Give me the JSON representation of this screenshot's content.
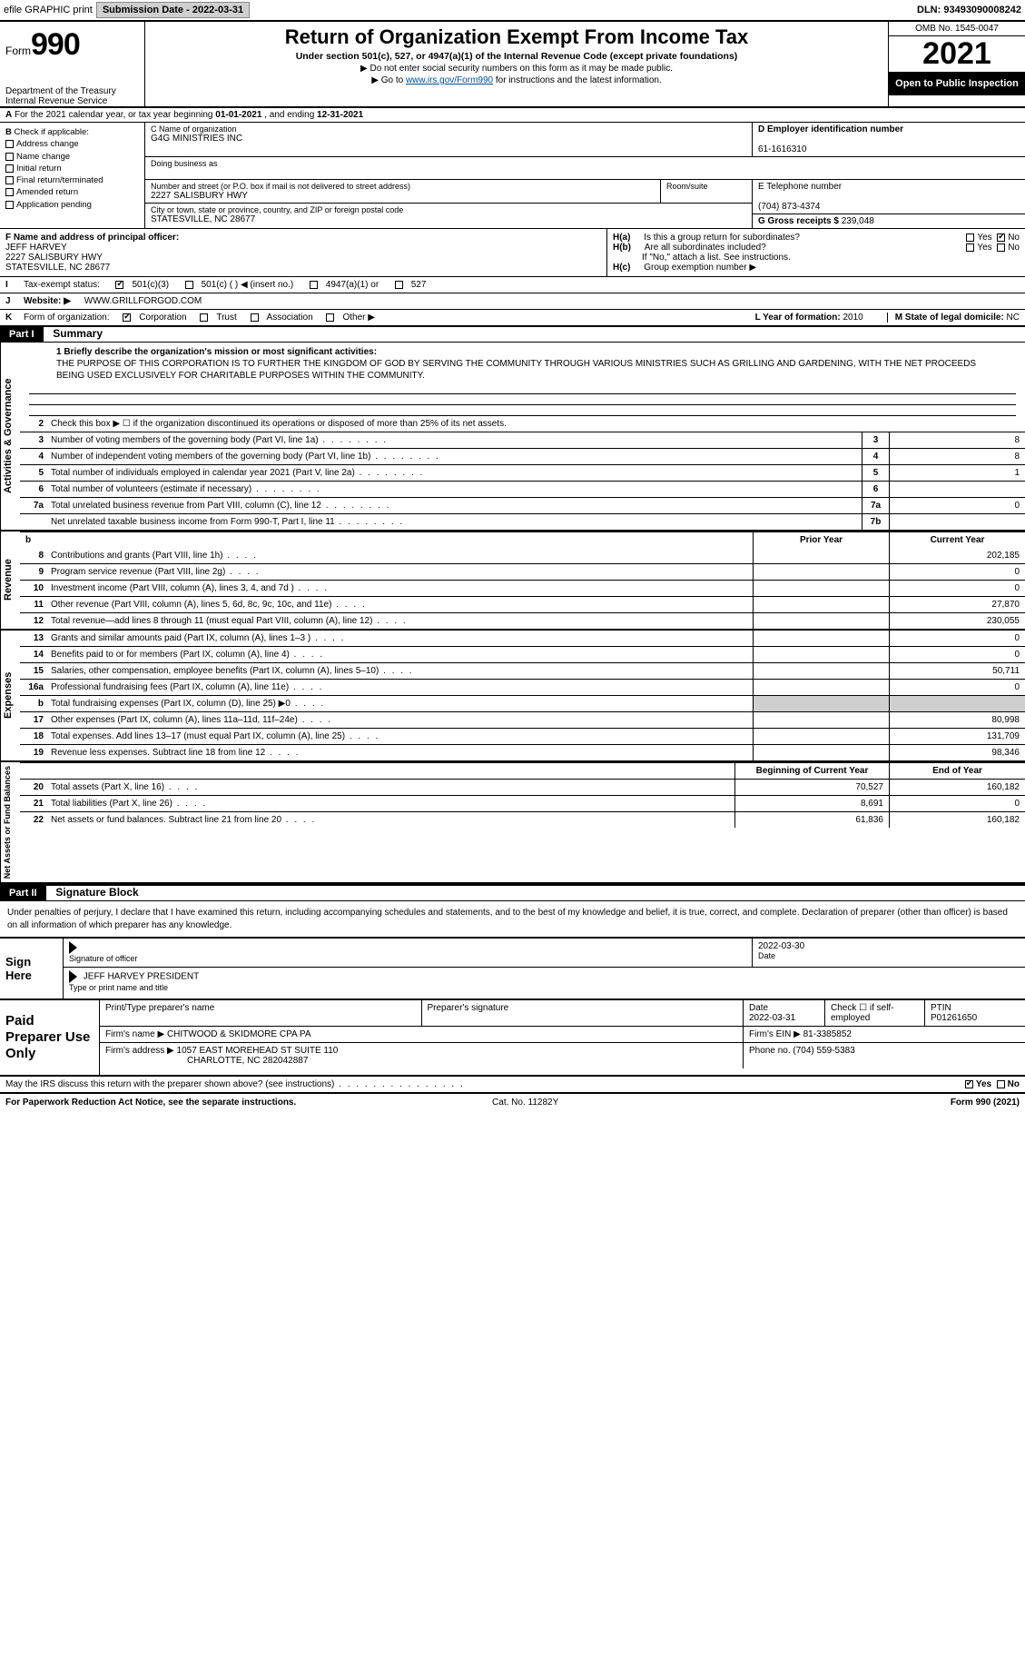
{
  "topbar": {
    "efile": "efile GRAPHIC print",
    "submission_label": "Submission Date - 2022-03-31",
    "dln": "DLN: 93493090008242"
  },
  "header": {
    "form_word": "Form",
    "form_no": "990",
    "title": "Return of Organization Exempt From Income Tax",
    "sub": "Under section 501(c), 527, or 4947(a)(1) of the Internal Revenue Code (except private foundations)",
    "sub2a": "▶ Do not enter social security numbers on this form as it may be made public.",
    "sub2b_pre": "▶ Go to ",
    "sub2b_link": "www.irs.gov/Form990",
    "sub2b_post": " for instructions and the latest information.",
    "dept": "Department of the Treasury",
    "irs": "Internal Revenue Service",
    "omb": "OMB No. 1545-0047",
    "year": "2021",
    "open": "Open to Public Inspection"
  },
  "A": {
    "text_pre": "For the 2021 calendar year, or tax year beginning ",
    "begin": "01-01-2021",
    "mid": " , and ending ",
    "end": "12-31-2021"
  },
  "B": {
    "label": "Check if applicable:",
    "opts": [
      "Address change",
      "Name change",
      "Initial return",
      "Final return/terminated",
      "Amended return",
      "Application pending"
    ]
  },
  "C": {
    "name_label": "C Name of organization",
    "name": "G4G MINISTRIES INC",
    "dba_label": "Doing business as",
    "street_label": "Number and street (or P.O. box if mail is not delivered to street address)",
    "room_label": "Room/suite",
    "street": "2227 SALISBURY HWY",
    "city_label": "City or town, state or province, country, and ZIP or foreign postal code",
    "city": "STATESVILLE, NC  28677"
  },
  "D": {
    "label": "D Employer identification number",
    "val": "61-1616310"
  },
  "E": {
    "label": "E Telephone number",
    "val": "(704) 873-4374"
  },
  "G": {
    "label": "G Gross receipts $",
    "val": "239,048"
  },
  "F": {
    "label": "F  Name and address of principal officer:",
    "name": "JEFF HARVEY",
    "street": "2227 SALISBURY HWY",
    "city": "STATESVILLE, NC  28677"
  },
  "H": {
    "a": "Is this a group return for subordinates?",
    "b": "Are all subordinates included?",
    "b2": "If \"No,\" attach a list. See instructions.",
    "c": "Group exemption number ▶",
    "ha_label": "H(a)",
    "hb_label": "H(b)",
    "hc_label": "H(c)",
    "yes": "Yes",
    "no": "No"
  },
  "I": {
    "label": "Tax-exempt status:",
    "o1": "501(c)(3)",
    "o2": "501(c) (   ) ◀ (insert no.)",
    "o3": "4947(a)(1) or",
    "o4": "527"
  },
  "J": {
    "label": "Website: ▶",
    "val": "WWW.GRILLFORGOD.COM"
  },
  "K": {
    "label": "Form of organization:",
    "o1": "Corporation",
    "o2": "Trust",
    "o3": "Association",
    "o4": "Other ▶"
  },
  "L": {
    "label": "L Year of formation:",
    "val": "2010"
  },
  "M": {
    "label": "M State of legal domicile:",
    "val": "NC"
  },
  "part1": {
    "tag": "Part I",
    "title": "Summary"
  },
  "mission": {
    "q": "1  Briefly describe the organization's mission or most significant activities:",
    "text": "THE PURPOSE OF THIS CORPORATION IS TO FURTHER THE KINGDOM OF GOD BY SERVING THE COMMUNITY THROUGH VARIOUS MINISTRIES SUCH AS GRILLING AND GARDENING, WITH THE NET PROCEEDS BEING USED EXCLUSIVELY FOR CHARITABLE PURPOSES WITHIN THE COMMUNITY."
  },
  "gov_lines": [
    {
      "n": "2",
      "d": "Check this box ▶ ☐  if the organization discontinued its operations or disposed of more than 25% of its net assets.",
      "box": "",
      "v": ""
    },
    {
      "n": "3",
      "d": "Number of voting members of the governing body (Part VI, line 1a)",
      "box": "3",
      "v": "8"
    },
    {
      "n": "4",
      "d": "Number of independent voting members of the governing body (Part VI, line 1b)",
      "box": "4",
      "v": "8"
    },
    {
      "n": "5",
      "d": "Total number of individuals employed in calendar year 2021 (Part V, line 2a)",
      "box": "5",
      "v": "1"
    },
    {
      "n": "6",
      "d": "Total number of volunteers (estimate if necessary)",
      "box": "6",
      "v": ""
    },
    {
      "n": "7a",
      "d": "Total unrelated business revenue from Part VIII, column (C), line 12",
      "box": "7a",
      "v": "0"
    },
    {
      "n": "",
      "d": "Net unrelated taxable business income from Form 990-T, Part I, line 11",
      "box": "7b",
      "v": ""
    }
  ],
  "col_hdr": {
    "b": "b",
    "prior": "Prior Year",
    "curr": "Current Year"
  },
  "rev_lines": [
    {
      "n": "8",
      "d": "Contributions and grants (Part VIII, line 1h)",
      "p": "",
      "c": "202,185"
    },
    {
      "n": "9",
      "d": "Program service revenue (Part VIII, line 2g)",
      "p": "",
      "c": "0"
    },
    {
      "n": "10",
      "d": "Investment income (Part VIII, column (A), lines 3, 4, and 7d )",
      "p": "",
      "c": "0"
    },
    {
      "n": "11",
      "d": "Other revenue (Part VIII, column (A), lines 5, 6d, 8c, 9c, 10c, and 11e)",
      "p": "",
      "c": "27,870"
    },
    {
      "n": "12",
      "d": "Total revenue—add lines 8 through 11 (must equal Part VIII, column (A), line 12)",
      "p": "",
      "c": "230,055"
    }
  ],
  "exp_lines": [
    {
      "n": "13",
      "d": "Grants and similar amounts paid (Part IX, column (A), lines 1–3 )",
      "p": "",
      "c": "0"
    },
    {
      "n": "14",
      "d": "Benefits paid to or for members (Part IX, column (A), line 4)",
      "p": "",
      "c": "0"
    },
    {
      "n": "15",
      "d": "Salaries, other compensation, employee benefits (Part IX, column (A), lines 5–10)",
      "p": "",
      "c": "50,711"
    },
    {
      "n": "16a",
      "d": "Professional fundraising fees (Part IX, column (A), line 11e)",
      "p": "",
      "c": "0"
    },
    {
      "n": "b",
      "d": "Total fundraising expenses (Part IX, column (D), line 25) ▶0",
      "p": "—",
      "c": "—"
    },
    {
      "n": "17",
      "d": "Other expenses (Part IX, column (A), lines 11a–11d, 11f–24e)",
      "p": "",
      "c": "80,998"
    },
    {
      "n": "18",
      "d": "Total expenses. Add lines 13–17 (must equal Part IX, column (A), line 25)",
      "p": "",
      "c": "131,709"
    },
    {
      "n": "19",
      "d": "Revenue less expenses. Subtract line 18 from line 12",
      "p": "",
      "c": "98,346"
    }
  ],
  "na_hdr": {
    "b": "Beginning of Current Year",
    "e": "End of Year"
  },
  "na_lines": [
    {
      "n": "20",
      "d": "Total assets (Part X, line 16)",
      "p": "70,527",
      "c": "160,182"
    },
    {
      "n": "21",
      "d": "Total liabilities (Part X, line 26)",
      "p": "8,691",
      "c": "0"
    },
    {
      "n": "22",
      "d": "Net assets or fund balances. Subtract line 21 from line 20",
      "p": "61,836",
      "c": "160,182"
    }
  ],
  "vtabs": {
    "gov": "Activities & Governance",
    "rev": "Revenue",
    "exp": "Expenses",
    "na": "Net Assets or Fund Balances"
  },
  "part2": {
    "tag": "Part II",
    "title": "Signature Block"
  },
  "penalty": "Under penalties of perjury, I declare that I have examined this return, including accompanying schedules and statements, and to the best of my knowledge and belief, it is true, correct, and complete. Declaration of preparer (other than officer) is based on all information of which preparer has any knowledge.",
  "sign": {
    "here": "Sign Here",
    "sig_label": "Signature of officer",
    "date_label": "Date",
    "date": "2022-03-30",
    "name": "JEFF HARVEY  PRESIDENT",
    "name_label": "Type or print name and title"
  },
  "prep": {
    "here": "Paid Preparer Use Only",
    "h1": "Print/Type preparer's name",
    "h2": "Preparer's signature",
    "h3": "Date",
    "h4": "Check ☐ if self-employed",
    "h5": "PTIN",
    "date": "2022-03-31",
    "ptin": "P01261650",
    "firm_label": "Firm's name    ▶",
    "firm": "CHITWOOD & SKIDMORE CPA PA",
    "ein_label": "Firm's EIN ▶",
    "ein": "81-3385852",
    "addr_label": "Firm's address ▶",
    "addr1": "1057 EAST MOREHEAD ST SUITE 110",
    "addr2": "CHARLOTTE, NC  282042887",
    "phone_label": "Phone no.",
    "phone": "(704) 559-5383"
  },
  "discuss": "May the IRS discuss this return with the preparer shown above? (see instructions)",
  "foot": {
    "pra": "For Paperwork Reduction Act Notice, see the separate instructions.",
    "cat": "Cat. No. 11282Y",
    "form": "Form 990 (2021)"
  }
}
